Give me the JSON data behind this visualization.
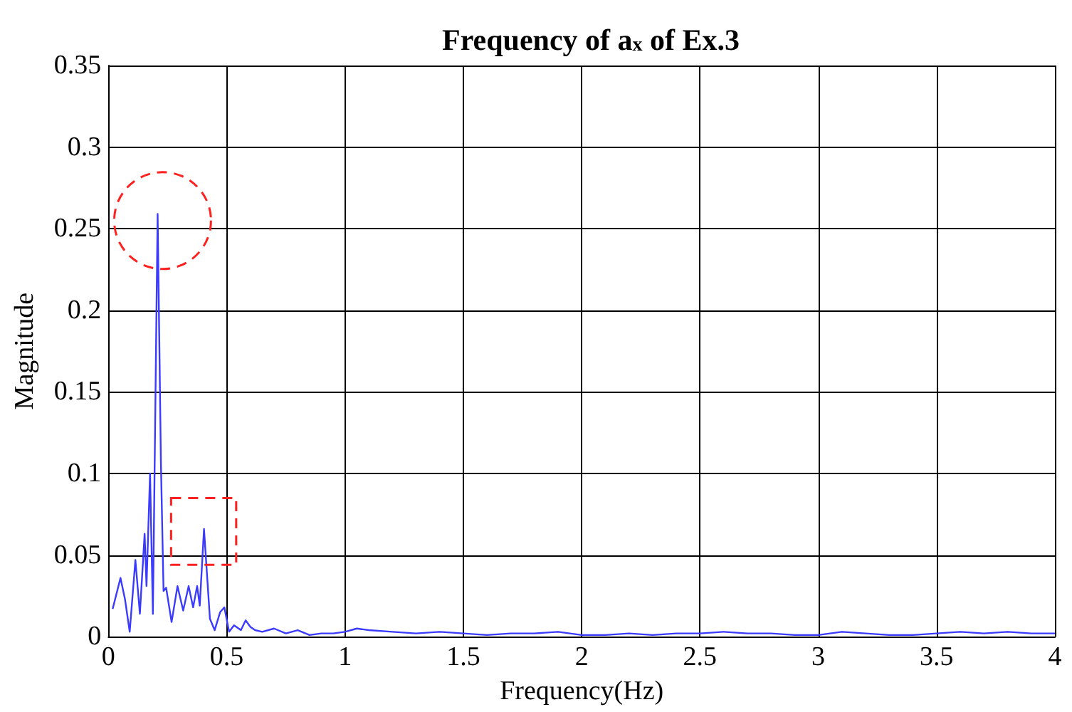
{
  "chart_data": {
    "type": "line",
    "title": "Frequency of a$_{x}$ of Ex.3",
    "xlabel": "Frequency(Hz)",
    "ylabel": "Magnitude",
    "xlim": [
      0,
      4
    ],
    "xticks": [
      0,
      0.5,
      1,
      1.5,
      2,
      2.5,
      3,
      3.5,
      4
    ],
    "ylim": [
      0,
      0.35
    ],
    "yticks": [
      0,
      0.05,
      0.1,
      0.15,
      0.2,
      0.25,
      0.3,
      0.35
    ],
    "grid": true,
    "marker": "none",
    "line_style": "solid",
    "series": [
      {
        "color": "#3b3bff",
        "x": [
          0.018,
          0.051,
          0.07,
          0.09,
          0.114,
          0.133,
          0.153,
          0.161,
          0.176,
          0.188,
          0.208,
          0.222,
          0.233,
          0.244,
          0.267,
          0.292,
          0.316,
          0.339,
          0.358,
          0.375,
          0.386,
          0.404,
          0.429,
          0.449,
          0.472,
          0.49,
          0.51,
          0.531,
          0.56,
          0.58,
          0.6,
          0.62,
          0.65,
          0.7,
          0.75,
          0.8,
          0.85,
          0.9,
          0.95,
          1.0,
          1.05,
          1.1,
          1.2,
          1.3,
          1.4,
          1.5,
          1.6,
          1.7,
          1.8,
          1.9,
          2.0,
          2.1,
          2.2,
          2.3,
          2.4,
          2.5,
          2.6,
          2.7,
          2.8,
          2.9,
          3.0,
          3.1,
          3.2,
          3.3,
          3.4,
          3.5,
          3.6,
          3.7,
          3.8,
          3.9,
          4.0
        ],
        "values": [
          0.017,
          0.036,
          0.023,
          0.003,
          0.047,
          0.014,
          0.063,
          0.031,
          0.1,
          0.014,
          0.259,
          0.106,
          0.028,
          0.03,
          0.009,
          0.031,
          0.016,
          0.031,
          0.018,
          0.031,
          0.019,
          0.066,
          0.011,
          0.004,
          0.015,
          0.018,
          0.003,
          0.007,
          0.004,
          0.01,
          0.006,
          0.004,
          0.003,
          0.005,
          0.002,
          0.004,
          0.001,
          0.002,
          0.002,
          0.003,
          0.005,
          0.004,
          0.003,
          0.002,
          0.003,
          0.002,
          0.001,
          0.002,
          0.002,
          0.003,
          0.001,
          0.001,
          0.002,
          0.001,
          0.002,
          0.002,
          0.003,
          0.002,
          0.002,
          0.001,
          0.001,
          0.003,
          0.002,
          0.001,
          0.001,
          0.002,
          0.003,
          0.002,
          0.003,
          0.002,
          0.002
        ]
      }
    ]
  }
}
